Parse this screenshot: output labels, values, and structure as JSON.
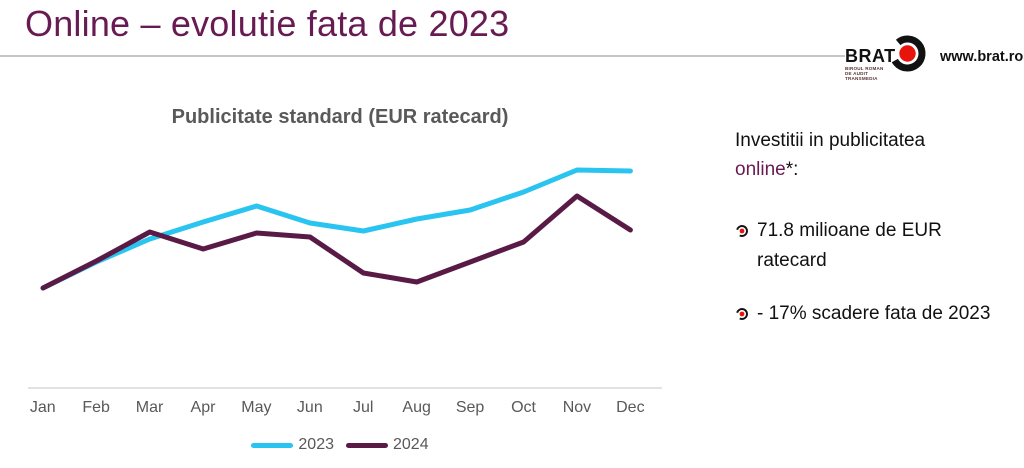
{
  "slide": {
    "title": "Online – evolutie fata de 2023"
  },
  "logo": {
    "brand": "BRAT",
    "sub_lines": [
      "BIROUL ROMAN",
      "DE AUDIT",
      "TRANSMEDIA"
    ],
    "url": "www.brat.ro"
  },
  "chart_data": {
    "type": "line",
    "title": "Publicitate standard (EUR ratecard)",
    "categories": [
      "Jan",
      "Feb",
      "Mar",
      "Apr",
      "May",
      "Jun",
      "Jul",
      "Aug",
      "Sep",
      "Oct",
      "Nov",
      "Dec"
    ],
    "series": [
      {
        "name": "2023",
        "color": "#29C4F0",
        "values": [
          102,
          128,
          151,
          168,
          184,
          167,
          159,
          171,
          180,
          198,
          220,
          219
        ]
      },
      {
        "name": "2024",
        "color": "#5A1A46",
        "values": [
          102,
          129,
          158,
          141,
          157,
          153,
          117,
          108,
          128,
          148,
          194,
          160
        ]
      }
    ],
    "ylim": [
      0,
      240
    ],
    "y_axis": "hidden — no scale, ticks or gridlines shown; values are relative units estimated from plot geometry",
    "xlabel": "",
    "ylabel": "",
    "grid": false,
    "legend_position": "bottom"
  },
  "panel": {
    "heading_line1": "Investitii in publicitatea",
    "heading_accent": "online",
    "heading_suffix": "*:",
    "bullets": [
      {
        "lines": [
          "71.8 milioane de EUR",
          "ratecard"
        ]
      },
      {
        "lines": [
          "- 17%  scadere fata de 2023"
        ]
      }
    ]
  },
  "colors": {
    "title-purple": "#681B52",
    "line-blue": "#29C4F0",
    "line-plum": "#5A1A46",
    "text-gray": "#595959",
    "axis-gray": "#D9D9D9",
    "rule-gray": "#C9C4C8",
    "brand-red": "#E8140C",
    "ink": "#111111"
  }
}
